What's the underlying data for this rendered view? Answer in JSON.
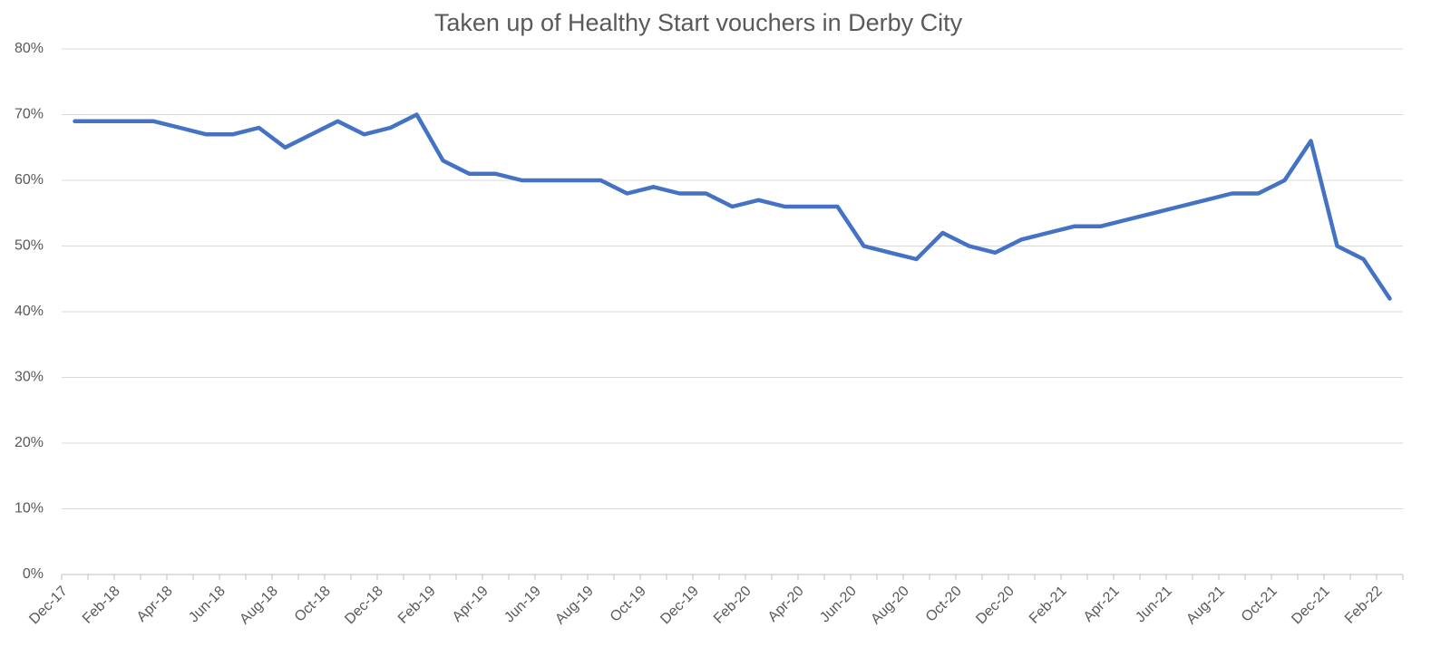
{
  "chart_data": {
    "type": "line",
    "title": "Taken up of Healthy Start vouchers in Derby City",
    "categories": [
      "Dec-17",
      null,
      "Feb-18",
      null,
      "Apr-18",
      null,
      "Jun-18",
      null,
      "Aug-18",
      null,
      "Oct-18",
      null,
      "Dec-18",
      null,
      "Feb-19",
      null,
      "Apr-19",
      null,
      "Jun-19",
      null,
      "Aug-19",
      null,
      "Oct-19",
      null,
      "Dec-19",
      null,
      "Feb-20",
      null,
      "Apr-20",
      null,
      "Jun-20",
      null,
      "Aug-20",
      null,
      "Oct-20",
      null,
      "Dec-20",
      null,
      "Feb-21",
      null,
      "Apr-21",
      null,
      "Jun-21",
      null,
      "Aug-21",
      null,
      "Oct-21",
      null,
      "Dec-21",
      null,
      "Feb-22"
    ],
    "series": [
      {
        "color": "#4472c4",
        "values": [
          69,
          69,
          69,
          69,
          68,
          67,
          67,
          68,
          65,
          67,
          69,
          67,
          68,
          70,
          63,
          61,
          61,
          60,
          60,
          60,
          60,
          58,
          59,
          58,
          58,
          56,
          57,
          56,
          56,
          56,
          50,
          49,
          48,
          52,
          50,
          49,
          51,
          52,
          53,
          53,
          54,
          55,
          56,
          57,
          58,
          58,
          60,
          66,
          50,
          48,
          42
        ]
      }
    ],
    "ylim": [
      0,
      80
    ],
    "yticks": [
      {
        "value": 0,
        "label": "0%"
      },
      {
        "value": 10,
        "label": "10%"
      },
      {
        "value": 20,
        "label": "20%"
      },
      {
        "value": 30,
        "label": "30%"
      },
      {
        "value": 40,
        "label": "40%"
      },
      {
        "value": 50,
        "label": "50%"
      },
      {
        "value": 60,
        "label": "60%"
      },
      {
        "value": 70,
        "label": "70%"
      },
      {
        "value": 80,
        "label": "80%"
      }
    ],
    "grid": true
  }
}
